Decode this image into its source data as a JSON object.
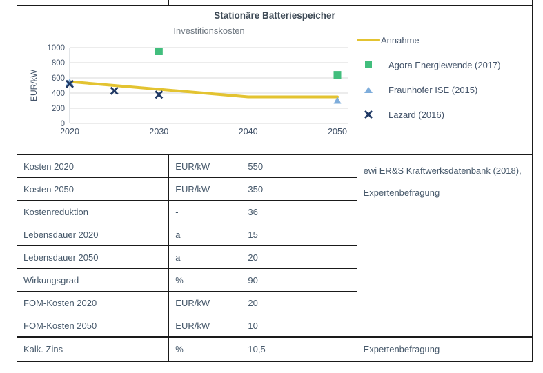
{
  "table": {
    "rows": [
      {
        "label": "Kosten 2020",
        "unit": "EUR/kW",
        "value": "550"
      },
      {
        "label": "Kosten 2050",
        "unit": "EUR/kW",
        "value": "350"
      },
      {
        "label": "Kostenreduktion",
        "unit": "-",
        "value": "36"
      },
      {
        "label": "Lebensdauer 2020",
        "unit": "a",
        "value": "15"
      },
      {
        "label": "Lebensdauer 2050",
        "unit": "a",
        "value": "20"
      },
      {
        "label": "Wirkungsgrad",
        "unit": "%",
        "value": "90"
      },
      {
        "label": "FOM-Kosten 2020",
        "unit": "EUR/kW",
        "value": "20"
      },
      {
        "label": "FOM-Kosten 2050",
        "unit": "EUR/kW",
        "value": "10"
      },
      {
        "label": "Kalk. Zins",
        "unit": "%",
        "value": "10,5"
      }
    ],
    "source_main": "ewi ER&S Kraftwerksdatenbank (2018), Expertenbefragung",
    "source_last": "Expertenbefragung"
  },
  "chart_data": {
    "type": "line",
    "title": "Stationäre Batteriespeicher",
    "subtitle": "Investitionskosten",
    "xlabel": "",
    "ylabel": "EUR/kW",
    "xlim": [
      2020,
      2050
    ],
    "ylim": [
      0,
      1000
    ],
    "ytick_step": 200,
    "xticks": [
      2020,
      2030,
      2040,
      2050
    ],
    "grid": "horizontal",
    "legend_position": "right",
    "colors": {
      "grid": "#d9d9d9",
      "axis": "#c6cbd1",
      "tick_text": "#44546a"
    },
    "series": [
      {
        "name": "Annahme",
        "kind": "line",
        "color": "#e3c331",
        "points": [
          [
            2020,
            550
          ],
          [
            2040,
            350
          ],
          [
            2050,
            350
          ]
        ]
      },
      {
        "name": "Agora Energiewende (2017)",
        "kind": "square",
        "color": "#42be7d",
        "points": [
          [
            2030,
            950
          ],
          [
            2050,
            640
          ]
        ]
      },
      {
        "name": "Fraunhofer ISE (2015)",
        "kind": "triangle",
        "color": "#7eaddb",
        "points": [
          [
            2020,
            540
          ],
          [
            2050,
            300
          ]
        ]
      },
      {
        "name": "Lazard (2016)",
        "kind": "x",
        "color": "#1f3864",
        "points": [
          [
            2020,
            520
          ],
          [
            2025,
            430
          ],
          [
            2030,
            380
          ]
        ]
      }
    ]
  }
}
